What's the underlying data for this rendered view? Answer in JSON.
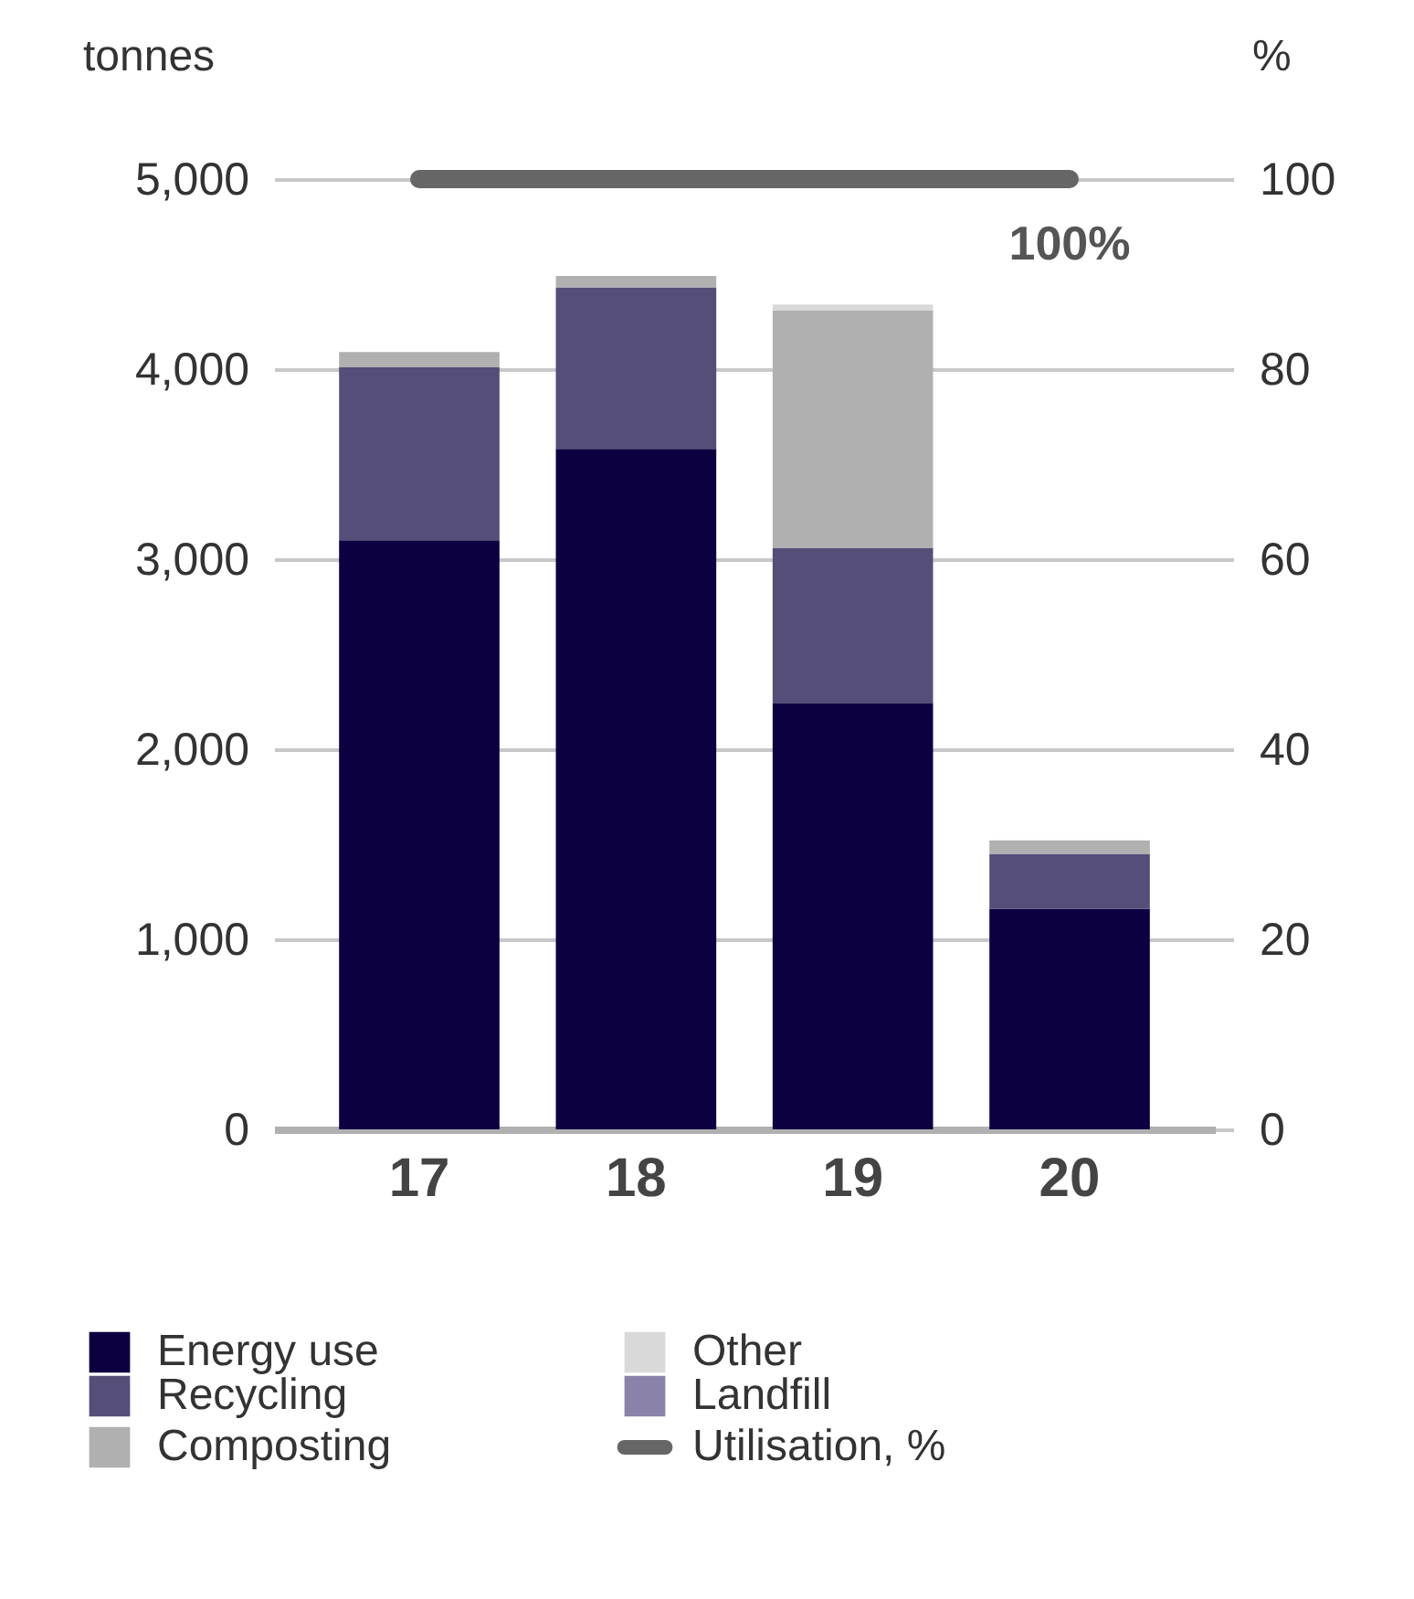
{
  "chart_data": {
    "type": "bar",
    "stacked": true,
    "ylabel": "tonnes",
    "y2label": "%",
    "categories": [
      "17",
      "18",
      "19",
      "20"
    ],
    "ylim": [
      0,
      5000
    ],
    "yticks": [
      0,
      {
        "value": 1000,
        "label": "1,000"
      },
      {
        "value": 2000,
        "label": "2,000"
      },
      {
        "value": 3000,
        "label": "3,000"
      },
      {
        "value": 4000,
        "label": "4,000"
      },
      {
        "value": 5000,
        "label": "5,000"
      }
    ],
    "y2lim": [
      0,
      100
    ],
    "y2ticks": [
      0,
      20,
      40,
      60,
      80,
      100
    ],
    "grid": "y",
    "legend": "bottom",
    "series": [
      {
        "name": "Energy use",
        "color": "#0c0040",
        "values": [
          3100,
          3580,
          2240,
          1160
        ]
      },
      {
        "name": "Recycling",
        "color": "#544e78",
        "values": [
          910,
          850,
          820,
          290
        ]
      },
      {
        "name": "Composting",
        "color": "#b0b0b0",
        "values": [
          80,
          60,
          1250,
          70
        ]
      },
      {
        "name": "Other",
        "color": "#d9d9d9",
        "values": [
          0,
          0,
          30,
          0
        ]
      },
      {
        "name": "Landfill",
        "color": "#8a82a8",
        "values": [
          0,
          0,
          0,
          0
        ]
      },
      {
        "name": "Utilisation, %",
        "type": "line",
        "axis": "y2",
        "color": "#666666",
        "values": [
          100,
          100,
          100,
          100
        ],
        "value_labels": [
          null,
          null,
          null,
          "100%"
        ]
      }
    ]
  }
}
